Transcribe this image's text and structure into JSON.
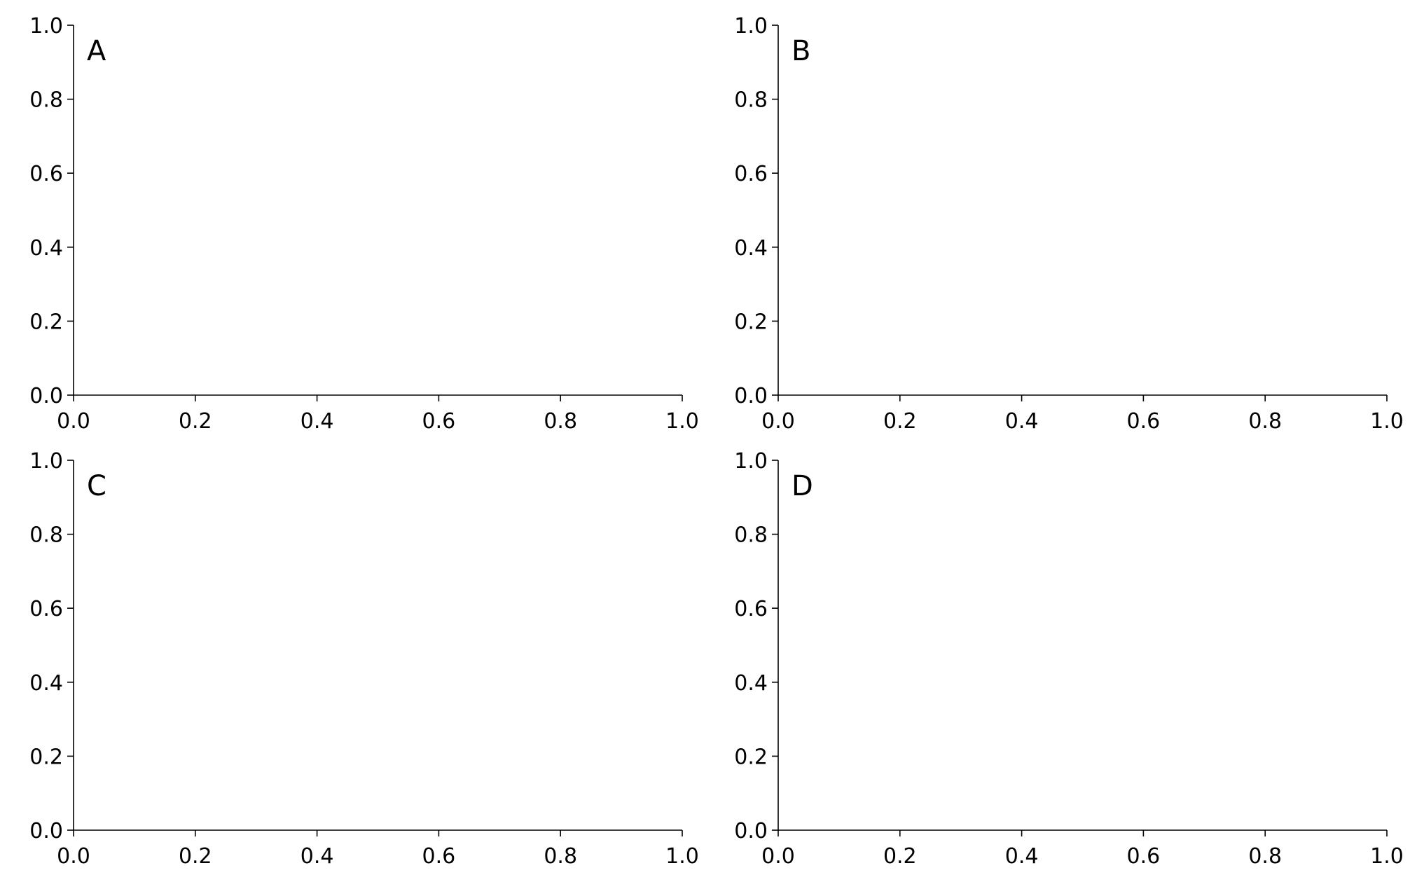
{
  "chart_data": [
    {
      "type": "blank",
      "annotation": "A",
      "xlim": [
        0,
        1
      ],
      "ylim": [
        0,
        1
      ],
      "xticks": [
        {
          "value": 0,
          "label": "0.0"
        },
        0.2,
        0.4,
        0.6,
        0.8,
        {
          "value": 1,
          "label": "1.0"
        }
      ],
      "yticks": [
        {
          "value": 0,
          "label": "0.0"
        },
        0.2,
        0.4,
        0.6,
        0.8,
        {
          "value": 1,
          "label": "1.0"
        }
      ]
    },
    {
      "type": "blank",
      "annotation": "B",
      "xlim": [
        0,
        1
      ],
      "ylim": [
        0,
        1
      ],
      "xticks": [
        {
          "value": 0,
          "label": "0.0"
        },
        0.2,
        0.4,
        0.6,
        0.8,
        {
          "value": 1,
          "label": "1.0"
        }
      ],
      "yticks": [
        {
          "value": 0,
          "label": "0.0"
        },
        0.2,
        0.4,
        0.6,
        0.8,
        {
          "value": 1,
          "label": "1.0"
        }
      ]
    },
    {
      "type": "blank",
      "annotation": "C",
      "xlim": [
        0,
        1
      ],
      "ylim": [
        0,
        1
      ],
      "xticks": [
        {
          "value": 0,
          "label": "0.0"
        },
        0.2,
        0.4,
        0.6,
        0.8,
        {
          "value": 1,
          "label": "1.0"
        }
      ],
      "yticks": [
        {
          "value": 0,
          "label": "0.0"
        },
        0.2,
        0.4,
        0.6,
        0.8,
        {
          "value": 1,
          "label": "1.0"
        }
      ]
    },
    {
      "type": "blank",
      "annotation": "D",
      "xlim": [
        0,
        1
      ],
      "ylim": [
        0,
        1
      ],
      "xticks": [
        {
          "value": 0,
          "label": "0.0"
        },
        0.2,
        0.4,
        0.6,
        0.8,
        {
          "value": 1,
          "label": "1.0"
        }
      ],
      "yticks": [
        {
          "value": 0,
          "label": "0.0"
        },
        0.2,
        0.4,
        0.6,
        0.8,
        {
          "value": 1,
          "label": "1.0"
        }
      ]
    }
  ]
}
